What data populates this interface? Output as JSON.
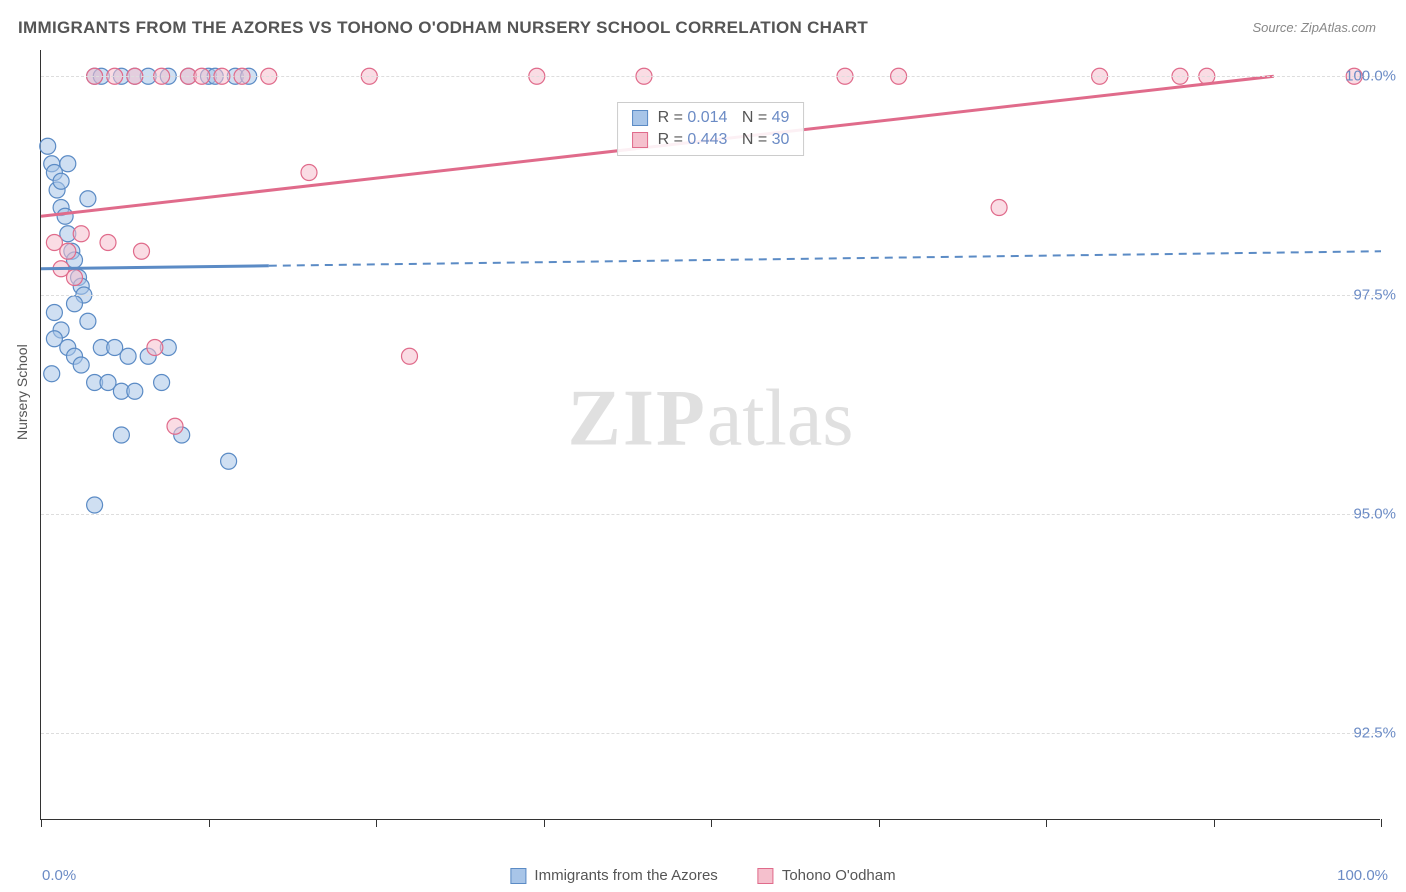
{
  "title": "IMMIGRANTS FROM THE AZORES VS TOHONO O'ODHAM NURSERY SCHOOL CORRELATION CHART",
  "source": "Source: ZipAtlas.com",
  "ylabel": "Nursery School",
  "watermark_a": "ZIP",
  "watermark_b": "atlas",
  "chart": {
    "type": "scatter",
    "xlim": [
      0,
      100
    ],
    "ylim": [
      91.5,
      100.3
    ],
    "xtick_labels": {
      "0": "0.0%",
      "100": "100.0%"
    },
    "xtick_positions": [
      0,
      12.5,
      25,
      37.5,
      50,
      62.5,
      75,
      87.5,
      100
    ],
    "ytick_labels": {
      "92.5": "92.5%",
      "95.0": "95.0%",
      "97.5": "97.5%",
      "100.0": "100.0%"
    },
    "ytick_positions": [
      92.5,
      95.0,
      97.5,
      100.0
    ],
    "grid_color": "#dddddd",
    "background_color": "#ffffff",
    "marker_radius": 8,
    "marker_stroke_width": 1.2,
    "series": [
      {
        "name": "Immigrants from the Azores",
        "fill": "#a8c5e8",
        "stroke": "#5b8bc5",
        "fill_opacity": 0.55,
        "stats": {
          "R": "0.014",
          "N": "49"
        },
        "trend": {
          "x1": 0,
          "y1": 97.8,
          "x2": 100,
          "y2": 98.0,
          "solid_until_x": 17,
          "stroke_width": 3,
          "dash": "8 6"
        },
        "points": [
          [
            0.5,
            99.2
          ],
          [
            0.8,
            99.0
          ],
          [
            1.0,
            98.9
          ],
          [
            1.2,
            98.7
          ],
          [
            1.5,
            98.5
          ],
          [
            1.8,
            98.4
          ],
          [
            2.0,
            98.2
          ],
          [
            2.3,
            98.0
          ],
          [
            2.5,
            97.9
          ],
          [
            2.8,
            97.7
          ],
          [
            3.0,
            97.6
          ],
          [
            3.2,
            97.5
          ],
          [
            1.0,
            97.3
          ],
          [
            1.5,
            97.1
          ],
          [
            2.0,
            96.9
          ],
          [
            2.5,
            96.8
          ],
          [
            3.0,
            96.7
          ],
          [
            0.8,
            96.6
          ],
          [
            4.0,
            100.0
          ],
          [
            4.5,
            100.0
          ],
          [
            6.0,
            100.0
          ],
          [
            7.0,
            100.0
          ],
          [
            8.0,
            100.0
          ],
          [
            9.5,
            100.0
          ],
          [
            11.0,
            100.0
          ],
          [
            12.5,
            100.0
          ],
          [
            13.0,
            100.0
          ],
          [
            14.5,
            100.0
          ],
          [
            15.5,
            100.0
          ],
          [
            4.5,
            96.9
          ],
          [
            5.5,
            96.9
          ],
          [
            6.5,
            96.8
          ],
          [
            8.0,
            96.8
          ],
          [
            9.5,
            96.9
          ],
          [
            4.0,
            96.5
          ],
          [
            5.0,
            96.5
          ],
          [
            6.0,
            96.4
          ],
          [
            7.0,
            96.4
          ],
          [
            9.0,
            96.5
          ],
          [
            6.0,
            95.9
          ],
          [
            10.5,
            95.9
          ],
          [
            14.0,
            95.6
          ],
          [
            4.0,
            95.1
          ],
          [
            1.5,
            98.8
          ],
          [
            2.0,
            99.0
          ],
          [
            3.5,
            98.6
          ],
          [
            1.0,
            97.0
          ],
          [
            2.5,
            97.4
          ],
          [
            3.5,
            97.2
          ]
        ]
      },
      {
        "name": "Tohono O'odham",
        "fill": "#f5c0cd",
        "stroke": "#e06b8b",
        "fill_opacity": 0.55,
        "stats": {
          "R": "0.443",
          "N": "30"
        },
        "trend": {
          "x1": 0,
          "y1": 98.4,
          "x2": 92,
          "y2": 100.0,
          "solid_until_x": 92,
          "stroke_width": 3
        },
        "points": [
          [
            1.0,
            98.1
          ],
          [
            2.0,
            98.0
          ],
          [
            1.5,
            97.8
          ],
          [
            2.5,
            97.7
          ],
          [
            3.0,
            98.2
          ],
          [
            5.0,
            98.1
          ],
          [
            7.5,
            98.0
          ],
          [
            8.5,
            96.9
          ],
          [
            10.0,
            96.0
          ],
          [
            4.0,
            100.0
          ],
          [
            5.5,
            100.0
          ],
          [
            7.0,
            100.0
          ],
          [
            9.0,
            100.0
          ],
          [
            11.0,
            100.0
          ],
          [
            12.0,
            100.0
          ],
          [
            13.5,
            100.0
          ],
          [
            15.0,
            100.0
          ],
          [
            17.0,
            100.0
          ],
          [
            20.0,
            98.9
          ],
          [
            24.5,
            100.0
          ],
          [
            27.5,
            96.8
          ],
          [
            37.0,
            100.0
          ],
          [
            45.0,
            100.0
          ],
          [
            60.0,
            100.0
          ],
          [
            64.0,
            100.0
          ],
          [
            71.5,
            98.5
          ],
          [
            79.0,
            100.0
          ],
          [
            85.0,
            100.0
          ],
          [
            87.0,
            100.0
          ],
          [
            98.0,
            100.0
          ]
        ]
      }
    ]
  },
  "legend": {
    "series1_label": "Immigrants from the Azores",
    "series2_label": "Tohono O'odham"
  }
}
